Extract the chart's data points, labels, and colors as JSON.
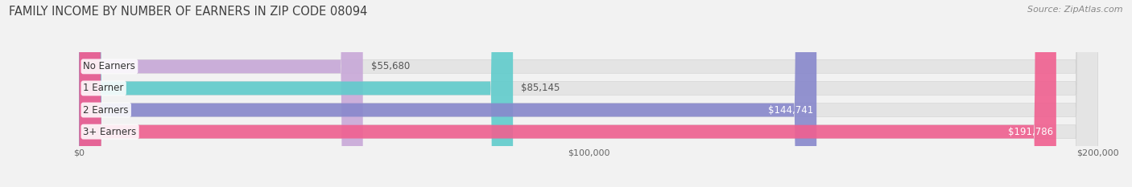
{
  "title": "FAMILY INCOME BY NUMBER OF EARNERS IN ZIP CODE 08094",
  "source": "Source: ZipAtlas.com",
  "categories": [
    "No Earners",
    "1 Earner",
    "2 Earners",
    "3+ Earners"
  ],
  "values": [
    55680,
    85145,
    144741,
    191786
  ],
  "bar_colors": [
    "#c8a8d8",
    "#60cccc",
    "#8888cc",
    "#f06090"
  ],
  "value_labels": [
    "$55,680",
    "$85,145",
    "$144,741",
    "$191,786"
  ],
  "xlim": [
    0,
    200000
  ],
  "xticks": [
    0,
    100000,
    200000
  ],
  "xtick_labels": [
    "$0",
    "$100,000",
    "$200,000"
  ],
  "title_fontsize": 10.5,
  "source_fontsize": 8,
  "cat_fontsize": 8.5,
  "val_fontsize": 8.5,
  "tick_fontsize": 8,
  "bar_height": 0.62,
  "background_color": "#f2f2f2",
  "bar_bg_color": "#e4e4e4",
  "title_color": "#404040",
  "source_color": "#888888",
  "value_label_dark": "#555555",
  "value_label_light": "#ffffff"
}
